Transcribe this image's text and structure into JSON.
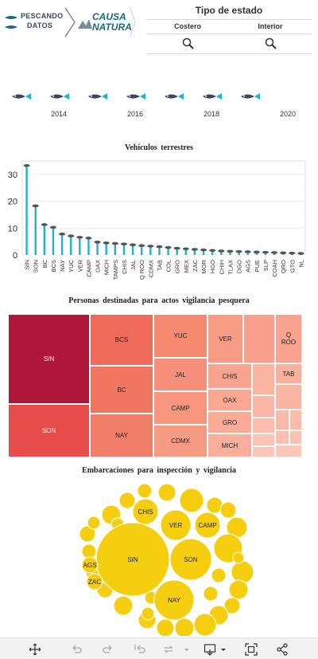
{
  "header": {
    "logo_pescando_top": "PESCANDO",
    "logo_pescando_bottom": "DATOS",
    "logo_causa_top": "CAUSA",
    "logo_causa_bottom": "NATURA",
    "filter_title": "Tipo de estado",
    "filter_columns": [
      "Costero",
      "Interior"
    ]
  },
  "timeline": {
    "years": [
      "2014",
      "2016",
      "2018",
      "2020"
    ],
    "marker_count": 7,
    "marker_icon": "fish-icon"
  },
  "colors": {
    "bar": "#1bb6c6",
    "bubble": "#f5cf0f",
    "treemap_dark": "#b0163a",
    "treemap_mid": "#ef6a58",
    "treemap_light": "#fab0a4",
    "accent": "#1a6b7a"
  },
  "charts": {
    "bar_title": "Vehículos terrestres",
    "treemap_title": "Personas destinadas para actos vigilancia pesquera",
    "bubble_title": "Embarcaciones para inspección y vigilancia"
  },
  "chart_data": [
    {
      "type": "bar",
      "title": "Vehículos terrestres",
      "categories": [
        "SIN",
        "SON",
        "BC",
        "BCS",
        "NAY",
        "YUC",
        "VER",
        "CAMP",
        "OAX",
        "MICH",
        "TAMPS",
        "CHIS",
        "JAL",
        "Q ROO",
        "CDMX",
        "TAB",
        "COL",
        "GRO",
        "MEX",
        "ZAC",
        "MOR",
        "HGO",
        "CHIH",
        "TLAX",
        "DGO",
        "AGS",
        "PUE",
        "SLP",
        "COAH",
        "QRO",
        "GTO",
        "NL"
      ],
      "values": [
        33,
        18,
        11,
        10,
        7.5,
        6.8,
        6.3,
        6,
        4.5,
        4.2,
        4,
        3.8,
        3.5,
        3.2,
        3,
        2.8,
        2.5,
        2.2,
        2,
        1.8,
        1.6,
        1.4,
        1.2,
        1.1,
        1,
        0.9,
        0.8,
        0.7,
        0.6,
        0.5,
        0.4,
        0.3
      ],
      "yticks": [
        0,
        10,
        20,
        30
      ],
      "ylim": [
        0,
        35
      ]
    },
    {
      "type": "treemap",
      "title": "Personas destinadas para actos vigilancia pesquera",
      "categories": [
        "SIN",
        "SON",
        "BCS",
        "BC",
        "NAY",
        "YUC",
        "JAL",
        "CAMP",
        "CDMX",
        "VER",
        "CHIS",
        "OAX",
        "GRO",
        "MICH",
        "Q ROO",
        "TAB"
      ],
      "labels": [
        "SIN",
        "SON",
        "BCS",
        "BC",
        "NAY",
        "YUC",
        "JAL",
        "CAMP",
        "CDMX",
        "VER",
        "CHIS",
        "OAX",
        "GRO",
        "MICH",
        "Q\nROO",
        "TAB"
      ]
    },
    {
      "type": "bubble",
      "title": "Embarcaciones para inspección y vigilancia",
      "labels": [
        "SIN",
        "SON",
        "NAY",
        "VER",
        "CAMP",
        "CHIS",
        "AGS",
        "ZAC"
      ]
    }
  ],
  "toolbar": {
    "icons": [
      "move-icon",
      "undo-icon",
      "redo-icon",
      "revert-icon",
      "refresh-icon",
      "download-icon",
      "fullscreen-icon",
      "share-icon"
    ]
  }
}
